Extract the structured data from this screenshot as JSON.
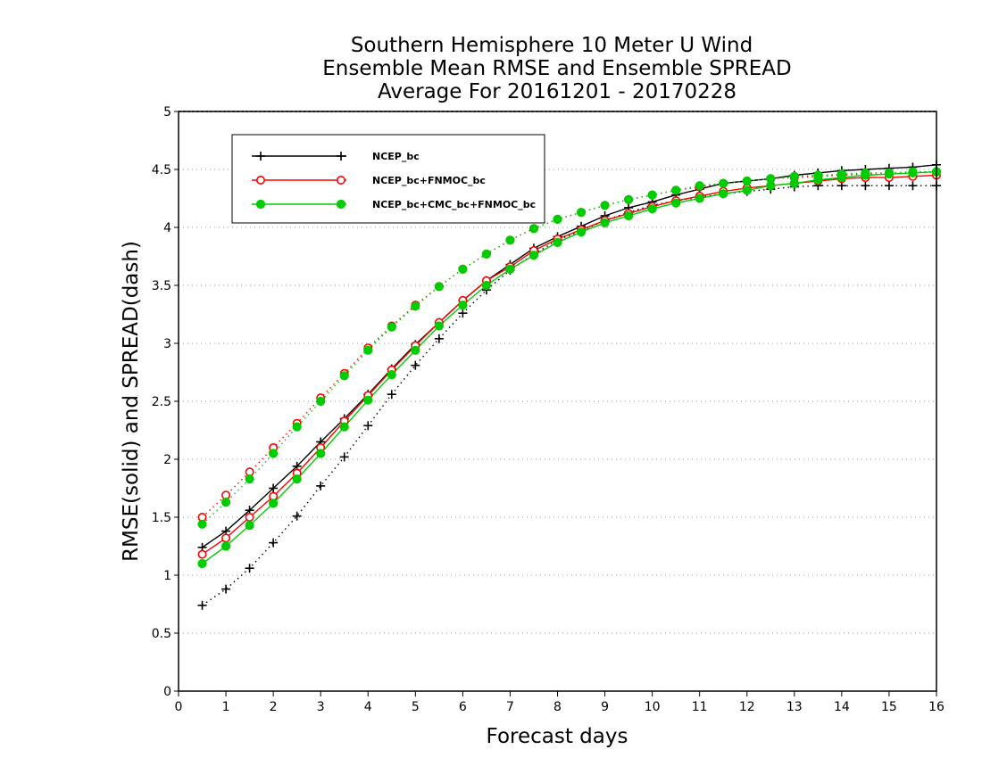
{
  "chart_data": {
    "type": "line",
    "title": [
      "Southern Hemisphere 10 Meter U Wind",
      "Ensemble Mean RMSE and Ensemble SPREAD",
      "Average For 20161201 - 20170228"
    ],
    "xlabel": "Forecast days",
    "ylabel": "RMSE(solid) and SPREAD(dash)",
    "xlim": [
      0,
      16
    ],
    "ylim": [
      0,
      5
    ],
    "xticks": [
      0,
      1,
      2,
      3,
      4,
      5,
      6,
      7,
      8,
      9,
      10,
      11,
      12,
      13,
      14,
      15,
      16
    ],
    "yticks": [
      0,
      0.5,
      1,
      1.5,
      2,
      2.5,
      3,
      3.5,
      4,
      4.5,
      5
    ],
    "grid": true,
    "legend_position": "top-left",
    "x": [
      0.5,
      1,
      1.5,
      2,
      2.5,
      3,
      3.5,
      4,
      4.5,
      5,
      5.5,
      6,
      6.5,
      7,
      7.5,
      8,
      8.5,
      9,
      9.5,
      10,
      10.5,
      11,
      11.5,
      12,
      12.5,
      13,
      13.5,
      14,
      14.5,
      15,
      15.5,
      16
    ],
    "series": [
      {
        "name": "NCEP_bc",
        "color": "#000000",
        "marker": "plus",
        "rmse": [
          1.24,
          1.38,
          1.56,
          1.75,
          1.94,
          2.15,
          2.35,
          2.56,
          2.78,
          2.99,
          3.18,
          3.37,
          3.54,
          3.68,
          3.82,
          3.92,
          4.01,
          4.1,
          4.17,
          4.22,
          4.28,
          4.33,
          4.38,
          4.4,
          4.42,
          4.45,
          4.47,
          4.49,
          4.5,
          4.51,
          4.52,
          4.54
        ],
        "spread": [
          0.74,
          0.88,
          1.06,
          1.28,
          1.51,
          1.77,
          2.02,
          2.29,
          2.56,
          2.81,
          3.04,
          3.26,
          3.46,
          3.63,
          3.77,
          3.89,
          3.97,
          4.06,
          4.13,
          4.19,
          4.23,
          4.26,
          4.29,
          4.31,
          4.33,
          4.35,
          4.36,
          4.36,
          4.36,
          4.36,
          4.36,
          4.36
        ]
      },
      {
        "name": "NCEP_bc+FNMOC_bc",
        "color": "#ff0000",
        "marker": "open-circle",
        "rmse": [
          1.18,
          1.32,
          1.5,
          1.68,
          1.88,
          2.1,
          2.33,
          2.55,
          2.77,
          2.98,
          3.18,
          3.37,
          3.54,
          3.66,
          3.8,
          3.9,
          3.98,
          4.06,
          4.12,
          4.18,
          4.23,
          4.27,
          4.31,
          4.34,
          4.36,
          4.38,
          4.4,
          4.42,
          4.43,
          4.43,
          4.44,
          4.45
        ],
        "spread": [
          1.5,
          1.69,
          1.89,
          2.1,
          2.31,
          2.53,
          2.74,
          2.96,
          3.15,
          3.33,
          3.49,
          3.64,
          3.77,
          3.89,
          3.99,
          4.07,
          4.13,
          4.19,
          4.24,
          4.28,
          4.32,
          4.35,
          4.38,
          4.4,
          4.42,
          4.43,
          4.44,
          4.45,
          4.46,
          4.46,
          4.47,
          4.48
        ]
      },
      {
        "name": "NCEP_bc+CMC_bc+FNMOC_bc",
        "color": "#00cc00",
        "marker": "filled-circle",
        "rmse": [
          1.1,
          1.25,
          1.43,
          1.62,
          1.83,
          2.05,
          2.28,
          2.51,
          2.73,
          2.94,
          3.15,
          3.33,
          3.5,
          3.64,
          3.76,
          3.87,
          3.96,
          4.04,
          4.1,
          4.16,
          4.21,
          4.25,
          4.29,
          4.32,
          4.36,
          4.38,
          4.41,
          4.43,
          4.45,
          4.46,
          4.47,
          4.48
        ],
        "spread": [
          1.44,
          1.63,
          1.83,
          2.05,
          2.28,
          2.5,
          2.72,
          2.94,
          3.14,
          3.32,
          3.49,
          3.64,
          3.77,
          3.89,
          3.99,
          4.07,
          4.13,
          4.19,
          4.24,
          4.28,
          4.32,
          4.36,
          4.38,
          4.4,
          4.42,
          4.44,
          4.45,
          4.46,
          4.47,
          4.47,
          4.48,
          4.48
        ]
      }
    ]
  }
}
